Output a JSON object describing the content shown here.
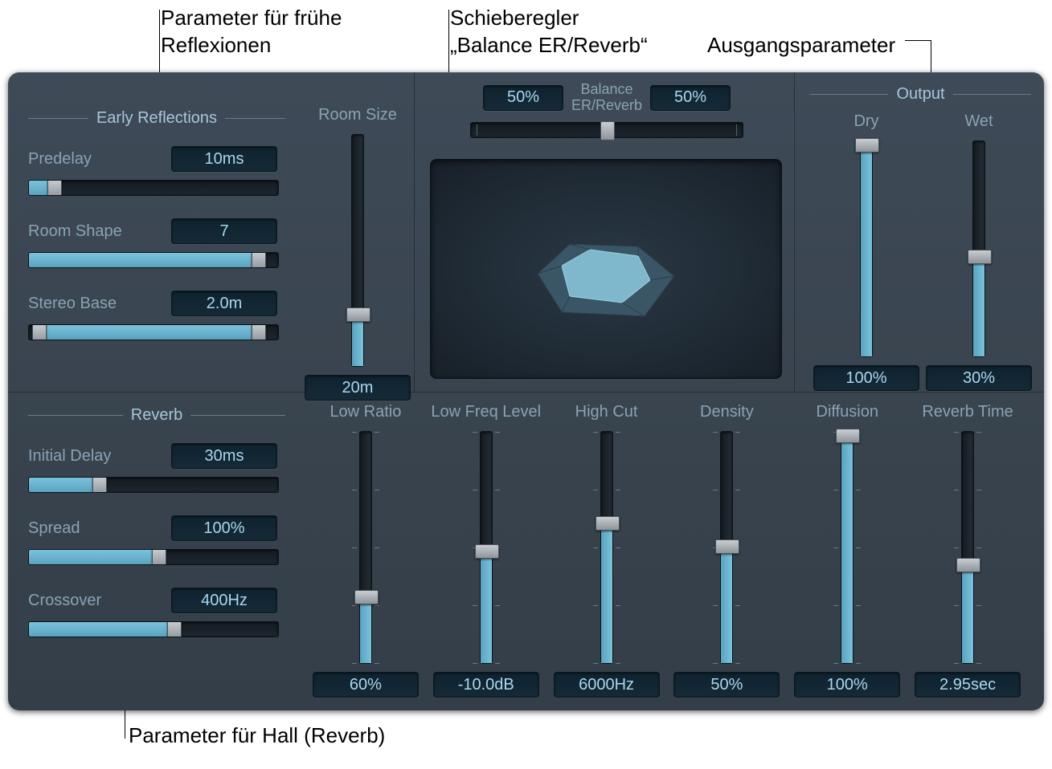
{
  "annotations": {
    "early_reflections": "Parameter für frühe\nReflexionen",
    "balance": "Schieberegler\n„Balance ER/Reverb“",
    "output": "Ausgangsparameter",
    "reverb": "Parameter für Hall (Reverb)"
  },
  "colors": {
    "panel_bg_top": "#3e4a57",
    "panel_bg_bottom": "#343e48",
    "label": "#8aa3b3",
    "header": "#a7c6da",
    "value_text": "#a9d7ef",
    "value_bg": "#122733",
    "slider_fill_a": "#7bc2dc",
    "slider_fill_b": "#5aa3bf",
    "track_bg": "#1a232b"
  },
  "early_reflections": {
    "title": "Early Reflections",
    "predelay": {
      "label": "Predelay",
      "value": "10ms",
      "fill_pct": 10
    },
    "room_shape": {
      "label": "Room Shape",
      "value": "7",
      "fill_pct": 92
    },
    "stereo_base": {
      "label": "Stereo Base",
      "value": "2.0m",
      "left_pct": 4,
      "right_pct": 92
    }
  },
  "room_size": {
    "label": "Room Size",
    "value": "20m",
    "fill_pct": 22
  },
  "balance": {
    "label": "Balance\nER/Reverb",
    "left_value": "50%",
    "right_value": "50%",
    "thumb_pct": 50
  },
  "output": {
    "title": "Output",
    "dry": {
      "label": "Dry",
      "value": "100%",
      "fill_pct": 100
    },
    "wet": {
      "label": "Wet",
      "value": "30%",
      "fill_pct": 46
    }
  },
  "reverb": {
    "title": "Reverb",
    "initial_delay": {
      "label": "Initial Delay",
      "value": "30ms",
      "fill_pct": 28
    },
    "spread": {
      "label": "Spread",
      "value": "100%",
      "fill_pct": 52
    },
    "crossover": {
      "label": "Crossover",
      "value": "400Hz",
      "fill_pct": 58
    }
  },
  "reverb_sliders": {
    "low_ratio": {
      "label": "Low Ratio",
      "value": "60%",
      "fill_pct": 28
    },
    "low_freq_level": {
      "label": "Low Freq Level",
      "value": "-10.0dB",
      "fill_pct": 48
    },
    "high_cut": {
      "label": "High Cut",
      "value": "6000Hz",
      "fill_pct": 60
    },
    "density": {
      "label": "Density",
      "value": "50%",
      "fill_pct": 50
    },
    "diffusion": {
      "label": "Diffusion",
      "value": "100%",
      "fill_pct": 98
    },
    "reverb_time": {
      "label": "Reverb Time",
      "value": "2.95sec",
      "fill_pct": 42
    }
  }
}
